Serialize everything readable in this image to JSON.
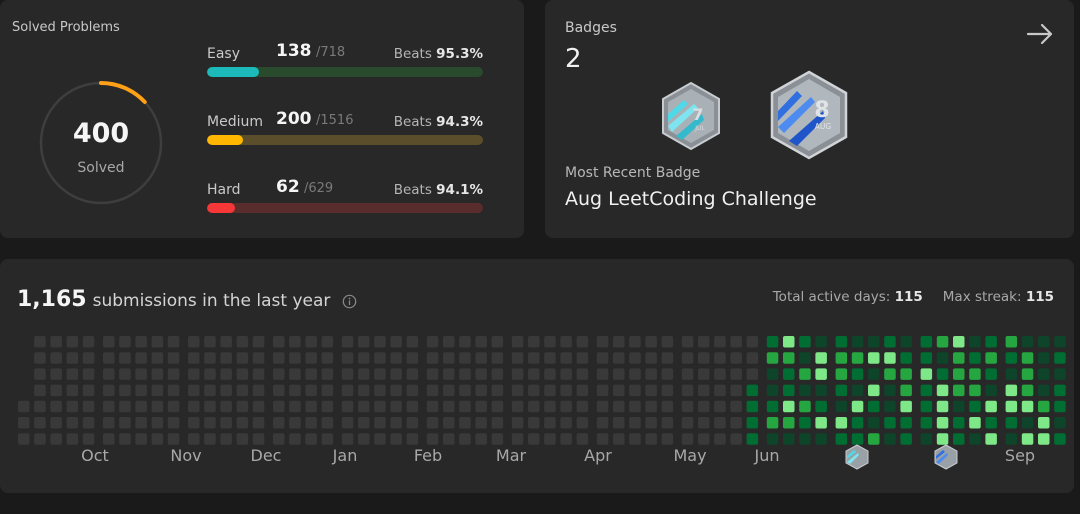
{
  "solved": {
    "title": "Solved Problems",
    "total": "400",
    "label": "Solved",
    "ring_fraction": 0.13,
    "difficulties": [
      {
        "name": "Easy",
        "solved": "138",
        "total": "/718",
        "beats_label": "Beats",
        "beats": "95.3%",
        "fraction": 0.19,
        "color": "#1cbaba",
        "track": "#2a4a2d"
      },
      {
        "name": "Medium",
        "solved": "200",
        "total": "/1516",
        "beats_label": "Beats",
        "beats": "94.3%",
        "fraction": 0.13,
        "color": "#ffb700",
        "track": "#5a4f2a"
      },
      {
        "name": "Hard",
        "solved": "62",
        "total": "/629",
        "beats_label": "Beats",
        "beats": "94.1%",
        "fraction": 0.1,
        "color": "#f63737",
        "track": "#5a2d2d"
      }
    ],
    "ring_color": "#ffa116",
    "ring_track": "#3e3e3e"
  },
  "badges": {
    "title": "Badges",
    "count": "2",
    "recent_label": "Most Recent Badge",
    "recent_name": "Aug LeetCoding Challenge",
    "items": [
      {
        "name": "jul-badge-icon",
        "number": "7",
        "month": "JUL"
      },
      {
        "name": "aug-badge-icon",
        "number": "8",
        "month": "AUG"
      }
    ]
  },
  "submissions": {
    "count": "1,165",
    "text": "submissions in the last year",
    "active_days_label": "Total active days:",
    "active_days": "115",
    "max_streak_label": "Max streak:",
    "max_streak": "115",
    "months": [
      "Oct",
      "Nov",
      "Dec",
      "Jan",
      "Feb",
      "Mar",
      "Apr",
      "May",
      "Jun",
      "",
      "",
      "Sep"
    ],
    "colors": {
      "empty": "#393939",
      "l1": "#0e4429",
      "l2": "#006d32",
      "l3": "#26a641",
      "l4": "#7ee787"
    }
  }
}
